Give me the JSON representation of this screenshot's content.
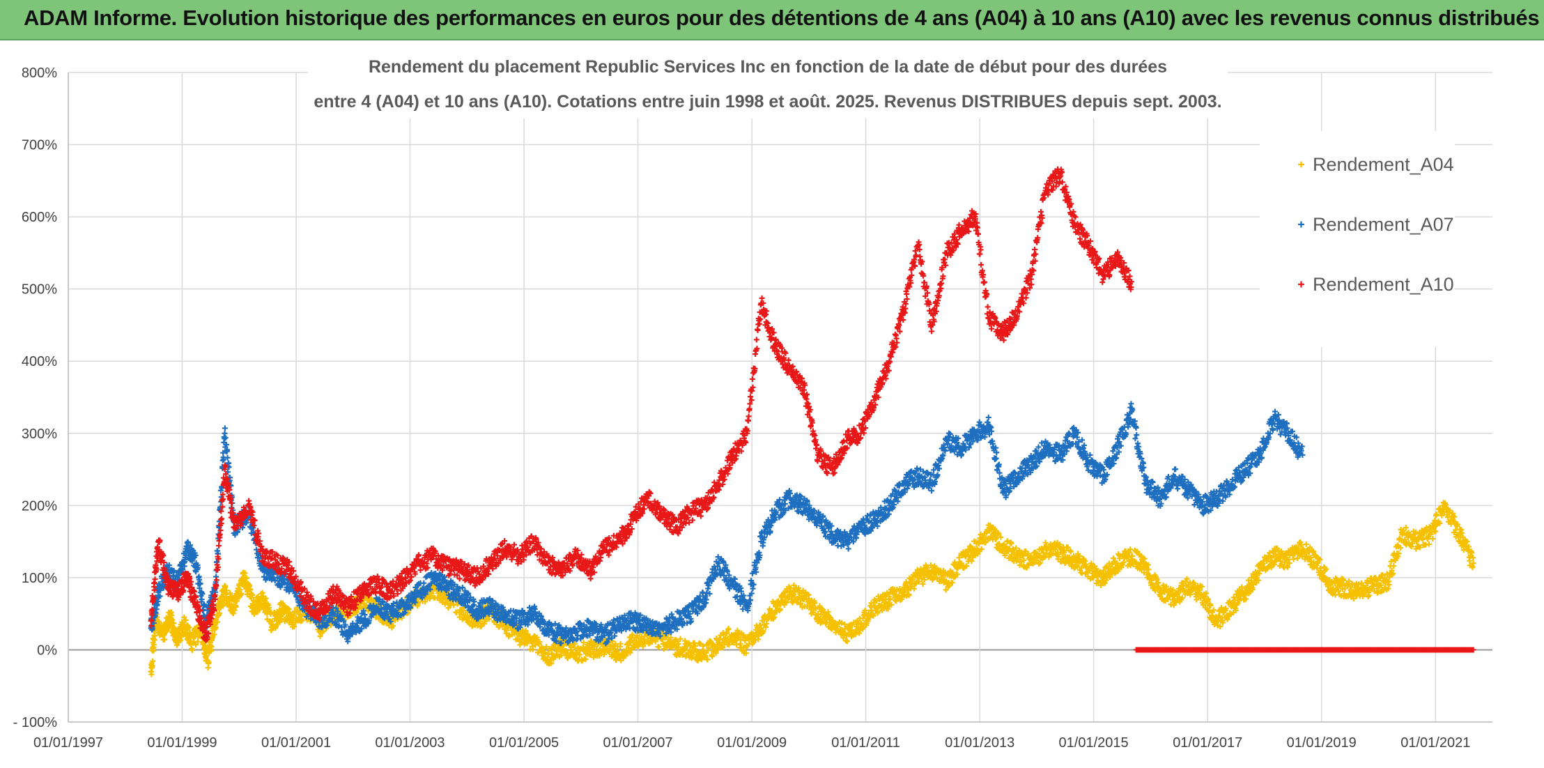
{
  "header": {
    "title": "ADAM Informe. Evolution historique des performances en euros pour des détentions de 4 ans (A04) à 10 ans (A10) avec les revenus connus distribués"
  },
  "chart_data": {
    "type": "scatter",
    "title_line1": "Rendement du placement Republic Services Inc en fonction de la date de début pour des durées",
    "title_line2": "entre 4 (A04) et 10 ans (A10). Cotations entre juin 1998 et août. 2025. Revenus DISTRIBUES depuis sept. 2003.",
    "xlabel": "",
    "ylabel": "",
    "x_ticks": [
      "01/01/1997",
      "01/01/1999",
      "01/01/2001",
      "01/01/2003",
      "01/01/2005",
      "01/01/2007",
      "01/01/2009",
      "01/01/2011",
      "01/01/2013",
      "01/01/2015",
      "01/01/2017",
      "01/01/2019",
      "01/01/2021"
    ],
    "y_ticks": [
      "- 100%",
      "0%",
      "100%",
      "200%",
      "300%",
      "400%",
      "500%",
      "600%",
      "700%",
      "800%"
    ],
    "xlim": [
      "1997-01-01",
      "2022-01-01"
    ],
    "ylim": [
      -100,
      800
    ],
    "grid": true,
    "legend_position": "top-right",
    "marker": "+",
    "series": [
      {
        "name": "Rendement_A04",
        "color": "#f5c000",
        "points": [
          [
            "1998-06-15",
            -30
          ],
          [
            "1998-07-15",
            40
          ],
          [
            "1998-09-01",
            20
          ],
          [
            "1998-10-15",
            45
          ],
          [
            "1998-12-01",
            15
          ],
          [
            "1999-01-15",
            35
          ],
          [
            "1999-03-01",
            10
          ],
          [
            "1999-05-01",
            30
          ],
          [
            "1999-06-15",
            -15
          ],
          [
            "1999-08-01",
            40
          ],
          [
            "1999-10-01",
            80
          ],
          [
            "1999-12-01",
            60
          ],
          [
            "2000-02-01",
            100
          ],
          [
            "2000-04-01",
            60
          ],
          [
            "2000-06-01",
            70
          ],
          [
            "2000-08-01",
            35
          ],
          [
            "2000-10-01",
            55
          ],
          [
            "2000-12-01",
            40
          ],
          [
            "2001-03-01",
            55
          ],
          [
            "2001-06-01",
            30
          ],
          [
            "2001-09-01",
            45
          ],
          [
            "2001-12-01",
            55
          ],
          [
            "2002-03-01",
            70
          ],
          [
            "2002-06-01",
            55
          ],
          [
            "2002-09-01",
            40
          ],
          [
            "2002-12-01",
            60
          ],
          [
            "2003-03-01",
            75
          ],
          [
            "2003-06-01",
            85
          ],
          [
            "2003-09-01",
            70
          ],
          [
            "2003-12-01",
            55
          ],
          [
            "2004-03-01",
            40
          ],
          [
            "2004-06-01",
            55
          ],
          [
            "2004-09-01",
            35
          ],
          [
            "2004-12-01",
            20
          ],
          [
            "2005-03-01",
            10
          ],
          [
            "2005-06-01",
            -10
          ],
          [
            "2005-09-01",
            5
          ],
          [
            "2005-12-01",
            -5
          ],
          [
            "2006-03-01",
            0
          ],
          [
            "2006-06-01",
            5
          ],
          [
            "2006-09-01",
            -5
          ],
          [
            "2006-12-01",
            10
          ],
          [
            "2007-03-01",
            20
          ],
          [
            "2007-06-01",
            15
          ],
          [
            "2007-09-01",
            5
          ],
          [
            "2007-12-01",
            0
          ],
          [
            "2008-03-01",
            -5
          ],
          [
            "2008-06-01",
            10
          ],
          [
            "2008-09-01",
            20
          ],
          [
            "2008-12-01",
            5
          ],
          [
            "2009-03-01",
            30
          ],
          [
            "2009-06-01",
            60
          ],
          [
            "2009-09-01",
            80
          ],
          [
            "2009-12-01",
            70
          ],
          [
            "2010-03-01",
            50
          ],
          [
            "2010-06-01",
            40
          ],
          [
            "2010-09-01",
            20
          ],
          [
            "2010-12-01",
            35
          ],
          [
            "2011-03-01",
            60
          ],
          [
            "2011-06-01",
            70
          ],
          [
            "2011-09-01",
            80
          ],
          [
            "2011-12-01",
            100
          ],
          [
            "2012-03-01",
            110
          ],
          [
            "2012-06-01",
            95
          ],
          [
            "2012-09-01",
            120
          ],
          [
            "2012-12-01",
            140
          ],
          [
            "2013-03-01",
            165
          ],
          [
            "2013-06-01",
            145
          ],
          [
            "2013-09-01",
            130
          ],
          [
            "2013-12-01",
            120
          ],
          [
            "2014-03-01",
            140
          ],
          [
            "2014-06-01",
            135
          ],
          [
            "2014-09-01",
            125
          ],
          [
            "2014-12-01",
            110
          ],
          [
            "2015-03-01",
            100
          ],
          [
            "2015-06-01",
            120
          ],
          [
            "2015-09-01",
            130
          ],
          [
            "2015-12-01",
            115
          ],
          [
            "2016-03-01",
            80
          ],
          [
            "2016-06-01",
            70
          ],
          [
            "2016-09-01",
            90
          ],
          [
            "2016-12-01",
            75
          ],
          [
            "2017-03-01",
            40
          ],
          [
            "2017-06-01",
            60
          ],
          [
            "2017-09-01",
            80
          ],
          [
            "2017-12-01",
            110
          ],
          [
            "2018-03-01",
            130
          ],
          [
            "2018-06-01",
            125
          ],
          [
            "2018-09-01",
            140
          ],
          [
            "2018-12-01",
            120
          ],
          [
            "2019-03-01",
            90
          ],
          [
            "2019-06-01",
            85
          ],
          [
            "2019-09-01",
            80
          ],
          [
            "2019-12-01",
            90
          ],
          [
            "2020-03-01",
            95
          ],
          [
            "2020-06-01",
            160
          ],
          [
            "2020-09-01",
            150
          ],
          [
            "2020-12-01",
            160
          ],
          [
            "2021-03-01",
            200
          ],
          [
            "2021-06-01",
            160
          ],
          [
            "2021-09-01",
            120
          ]
        ]
      },
      {
        "name": "Rendement_A07",
        "color": "#1f6fc0",
        "points": [
          [
            "1998-06-15",
            30
          ],
          [
            "1998-08-01",
            80
          ],
          [
            "1998-10-01",
            110
          ],
          [
            "1998-12-01",
            90
          ],
          [
            "1999-02-01",
            140
          ],
          [
            "1999-04-01",
            120
          ],
          [
            "1999-06-01",
            40
          ],
          [
            "1999-08-01",
            80
          ],
          [
            "1999-10-01",
            300
          ],
          [
            "1999-12-01",
            170
          ],
          [
            "2000-03-01",
            190
          ],
          [
            "2000-06-01",
            110
          ],
          [
            "2000-09-01",
            100
          ],
          [
            "2000-12-01",
            90
          ],
          [
            "2001-03-01",
            60
          ],
          [
            "2001-06-01",
            40
          ],
          [
            "2001-09-01",
            50
          ],
          [
            "2001-12-01",
            20
          ],
          [
            "2002-03-01",
            40
          ],
          [
            "2002-06-01",
            60
          ],
          [
            "2002-09-01",
            50
          ],
          [
            "2002-12-01",
            60
          ],
          [
            "2003-03-01",
            80
          ],
          [
            "2003-06-01",
            100
          ],
          [
            "2003-09-01",
            85
          ],
          [
            "2003-12-01",
            75
          ],
          [
            "2004-03-01",
            55
          ],
          [
            "2004-06-01",
            60
          ],
          [
            "2004-09-01",
            45
          ],
          [
            "2004-12-01",
            40
          ],
          [
            "2005-03-01",
            50
          ],
          [
            "2005-06-01",
            30
          ],
          [
            "2005-09-01",
            20
          ],
          [
            "2005-12-01",
            25
          ],
          [
            "2006-03-01",
            30
          ],
          [
            "2006-06-01",
            20
          ],
          [
            "2006-09-01",
            35
          ],
          [
            "2006-12-01",
            40
          ],
          [
            "2007-03-01",
            35
          ],
          [
            "2007-06-01",
            30
          ],
          [
            "2007-09-01",
            40
          ],
          [
            "2007-12-01",
            50
          ],
          [
            "2008-03-01",
            70
          ],
          [
            "2008-06-01",
            120
          ],
          [
            "2008-09-01",
            90
          ],
          [
            "2008-12-01",
            60
          ],
          [
            "2009-03-01",
            150
          ],
          [
            "2009-06-01",
            190
          ],
          [
            "2009-09-01",
            210
          ],
          [
            "2009-12-01",
            200
          ],
          [
            "2010-03-01",
            180
          ],
          [
            "2010-06-01",
            160
          ],
          [
            "2010-09-01",
            150
          ],
          [
            "2010-12-01",
            170
          ],
          [
            "2011-03-01",
            180
          ],
          [
            "2011-06-01",
            200
          ],
          [
            "2011-09-01",
            230
          ],
          [
            "2011-12-01",
            240
          ],
          [
            "2012-03-01",
            230
          ],
          [
            "2012-06-01",
            290
          ],
          [
            "2012-09-01",
            280
          ],
          [
            "2012-12-01",
            300
          ],
          [
            "2013-03-01",
            310
          ],
          [
            "2013-06-01",
            220
          ],
          [
            "2013-09-01",
            240
          ],
          [
            "2013-12-01",
            260
          ],
          [
            "2014-03-01",
            280
          ],
          [
            "2014-06-01",
            270
          ],
          [
            "2014-09-01",
            300
          ],
          [
            "2014-12-01",
            260
          ],
          [
            "2015-03-01",
            240
          ],
          [
            "2015-06-01",
            280
          ],
          [
            "2015-09-01",
            330
          ],
          [
            "2015-12-01",
            230
          ],
          [
            "2016-03-01",
            210
          ],
          [
            "2016-06-01",
            240
          ],
          [
            "2016-09-01",
            220
          ],
          [
            "2016-12-01",
            200
          ],
          [
            "2017-03-01",
            210
          ],
          [
            "2017-06-01",
            230
          ],
          [
            "2017-09-01",
            250
          ],
          [
            "2017-12-01",
            270
          ],
          [
            "2018-03-01",
            320
          ],
          [
            "2018-06-01",
            300
          ],
          [
            "2018-09-01",
            270
          ]
        ]
      },
      {
        "name": "Rendement_A10",
        "color": "#e81818",
        "points": [
          [
            "1998-06-15",
            40
          ],
          [
            "1998-08-01",
            150
          ],
          [
            "1998-10-01",
            90
          ],
          [
            "1998-12-01",
            80
          ],
          [
            "1999-02-01",
            100
          ],
          [
            "1999-04-01",
            60
          ],
          [
            "1999-06-01",
            20
          ],
          [
            "1999-08-01",
            70
          ],
          [
            "1999-10-01",
            250
          ],
          [
            "1999-12-01",
            170
          ],
          [
            "2000-03-01",
            200
          ],
          [
            "2000-06-01",
            130
          ],
          [
            "2000-09-01",
            120
          ],
          [
            "2000-12-01",
            110
          ],
          [
            "2001-03-01",
            70
          ],
          [
            "2001-06-01",
            50
          ],
          [
            "2001-09-01",
            80
          ],
          [
            "2001-12-01",
            60
          ],
          [
            "2002-03-01",
            80
          ],
          [
            "2002-06-01",
            90
          ],
          [
            "2002-09-01",
            80
          ],
          [
            "2002-12-01",
            100
          ],
          [
            "2003-03-01",
            120
          ],
          [
            "2003-06-01",
            130
          ],
          [
            "2003-09-01",
            115
          ],
          [
            "2003-12-01",
            110
          ],
          [
            "2004-03-01",
            100
          ],
          [
            "2004-06-01",
            120
          ],
          [
            "2004-09-01",
            140
          ],
          [
            "2004-12-01",
            130
          ],
          [
            "2005-03-01",
            150
          ],
          [
            "2005-06-01",
            120
          ],
          [
            "2005-09-01",
            110
          ],
          [
            "2005-12-01",
            130
          ],
          [
            "2006-03-01",
            110
          ],
          [
            "2006-06-01",
            140
          ],
          [
            "2006-09-01",
            150
          ],
          [
            "2006-12-01",
            180
          ],
          [
            "2007-03-01",
            210
          ],
          [
            "2007-06-01",
            190
          ],
          [
            "2007-09-01",
            170
          ],
          [
            "2007-12-01",
            190
          ],
          [
            "2008-03-01",
            200
          ],
          [
            "2008-06-01",
            230
          ],
          [
            "2008-09-01",
            270
          ],
          [
            "2008-12-01",
            300
          ],
          [
            "2009-03-01",
            480
          ],
          [
            "2009-06-01",
            420
          ],
          [
            "2009-09-01",
            390
          ],
          [
            "2009-12-01",
            360
          ],
          [
            "2010-03-01",
            270
          ],
          [
            "2010-06-01",
            250
          ],
          [
            "2010-09-01",
            290
          ],
          [
            "2010-12-01",
            300
          ],
          [
            "2011-03-01",
            350
          ],
          [
            "2011-06-01",
            400
          ],
          [
            "2011-09-01",
            470
          ],
          [
            "2011-12-01",
            560
          ],
          [
            "2012-03-01",
            450
          ],
          [
            "2012-06-01",
            550
          ],
          [
            "2012-09-01",
            580
          ],
          [
            "2012-12-01",
            600
          ],
          [
            "2013-03-01",
            460
          ],
          [
            "2013-06-01",
            440
          ],
          [
            "2013-09-01",
            470
          ],
          [
            "2013-12-01",
            520
          ],
          [
            "2014-03-01",
            640
          ],
          [
            "2014-06-01",
            660
          ],
          [
            "2014-09-01",
            590
          ],
          [
            "2014-12-01",
            560
          ],
          [
            "2015-03-01",
            520
          ],
          [
            "2015-06-01",
            540
          ],
          [
            "2015-09-01",
            510
          ]
        ]
      },
      {
        "name": "",
        "color": "#e81818",
        "note_zero_run": true,
        "points": [
          [
            "2015-10-01",
            0
          ],
          [
            "2016-03-01",
            0
          ],
          [
            "2016-09-01",
            0
          ],
          [
            "2017-03-01",
            0
          ],
          [
            "2017-09-01",
            0
          ],
          [
            "2018-03-01",
            0
          ],
          [
            "2018-09-01",
            0
          ],
          [
            "2019-03-01",
            0
          ],
          [
            "2019-09-01",
            0
          ],
          [
            "2020-03-01",
            0
          ],
          [
            "2020-09-01",
            0
          ],
          [
            "2021-03-01",
            0
          ],
          [
            "2021-09-01",
            0
          ]
        ]
      }
    ]
  }
}
